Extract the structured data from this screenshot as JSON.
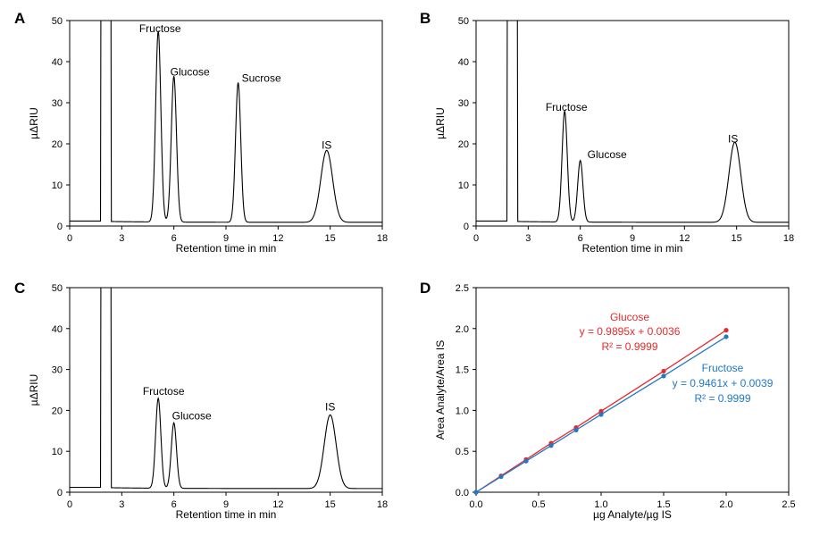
{
  "chart_data": [
    {
      "panel": "A",
      "type": "line",
      "xlabel": "Retention time in min",
      "ylabel": "µΔRIU",
      "xlim": [
        0,
        18
      ],
      "ylim": [
        0,
        50
      ],
      "xticks": [
        0,
        3,
        6,
        9,
        12,
        15,
        18
      ],
      "yticks": [
        0,
        10,
        20,
        30,
        40,
        50
      ],
      "baseline": 1.2,
      "solvent_front": {
        "x": 1.8,
        "offscale": true
      },
      "peaks": [
        {
          "label": "Fructose",
          "x": 5.1,
          "height": 46.5
        },
        {
          "label": "Glucose",
          "x": 6.0,
          "height": 35.5
        },
        {
          "label": "Sucrose",
          "x": 9.7,
          "height": 34.0
        },
        {
          "label": "IS",
          "x": 14.8,
          "height": 17.5
        }
      ],
      "annotations": [
        "Fructose",
        "Glucose",
        "Sucrose",
        "IS"
      ]
    },
    {
      "panel": "B",
      "type": "line",
      "xlabel": "Retention time in min",
      "ylabel": "µΔRIU",
      "xlim": [
        0,
        18
      ],
      "ylim": [
        0,
        50
      ],
      "xticks": [
        0,
        3,
        6,
        9,
        12,
        15,
        18
      ],
      "yticks": [
        0,
        10,
        20,
        30,
        40,
        50
      ],
      "baseline": 1.2,
      "solvent_front": {
        "x": 1.8,
        "offscale": true
      },
      "peaks": [
        {
          "label": "Fructose",
          "x": 5.1,
          "height": 27.0
        },
        {
          "label": "Glucose",
          "x": 6.0,
          "height": 15.0
        },
        {
          "label": "IS",
          "x": 14.9,
          "height": 19.5
        }
      ],
      "annotations": [
        "Fructose",
        "Glucose",
        "IS"
      ]
    },
    {
      "panel": "C",
      "type": "line",
      "xlabel": "Retention time in min",
      "ylabel": "µΔRIU",
      "xlim": [
        0,
        18
      ],
      "ylim": [
        0,
        50
      ],
      "xticks": [
        0,
        3,
        6,
        9,
        12,
        15,
        18
      ],
      "yticks": [
        0,
        10,
        20,
        30,
        40,
        50
      ],
      "baseline": 1.2,
      "solvent_front": {
        "x": 1.8,
        "offscale": true
      },
      "peaks": [
        {
          "label": "Fructose",
          "x": 5.1,
          "height": 22.0
        },
        {
          "label": "Glucose",
          "x": 6.0,
          "height": 16.0
        },
        {
          "label": "IS",
          "x": 15.0,
          "height": 18.0
        }
      ],
      "annotations": [
        "Fructose",
        "Glucose",
        "IS"
      ]
    },
    {
      "panel": "D",
      "type": "line",
      "xlabel": "µg Analyte/µg IS",
      "ylabel": "Area Analyte/Area IS",
      "xlim": [
        0,
        2.5
      ],
      "ylim": [
        0,
        2.5
      ],
      "xticks": [
        "0.0",
        "0.5",
        "1.0",
        "1.5",
        "2.0",
        "2.5"
      ],
      "yticks": [
        "0.0",
        "0.5",
        "1.0",
        "1.5",
        "2.0",
        "2.5"
      ],
      "series": [
        {
          "name": "Glucose",
          "color": "#e8282b",
          "x": [
            0,
            0.2,
            0.4,
            0.6,
            0.8,
            1.0,
            1.5,
            2.0
          ],
          "y": [
            0.0,
            0.2,
            0.4,
            0.6,
            0.79,
            0.99,
            1.48,
            1.98
          ],
          "equation": "y = 0.9895x + 0.0036",
          "r2": "R² = 0.9999"
        },
        {
          "name": "Fructose",
          "color": "#1f78c8",
          "x": [
            0,
            0.2,
            0.4,
            0.6,
            0.8,
            1.0,
            1.5,
            2.0
          ],
          "y": [
            0.0,
            0.19,
            0.38,
            0.57,
            0.76,
            0.95,
            1.42,
            1.9
          ],
          "equation": "y = 0.9461x + 0.0039",
          "r2": "R² = 0.9999"
        }
      ]
    }
  ]
}
